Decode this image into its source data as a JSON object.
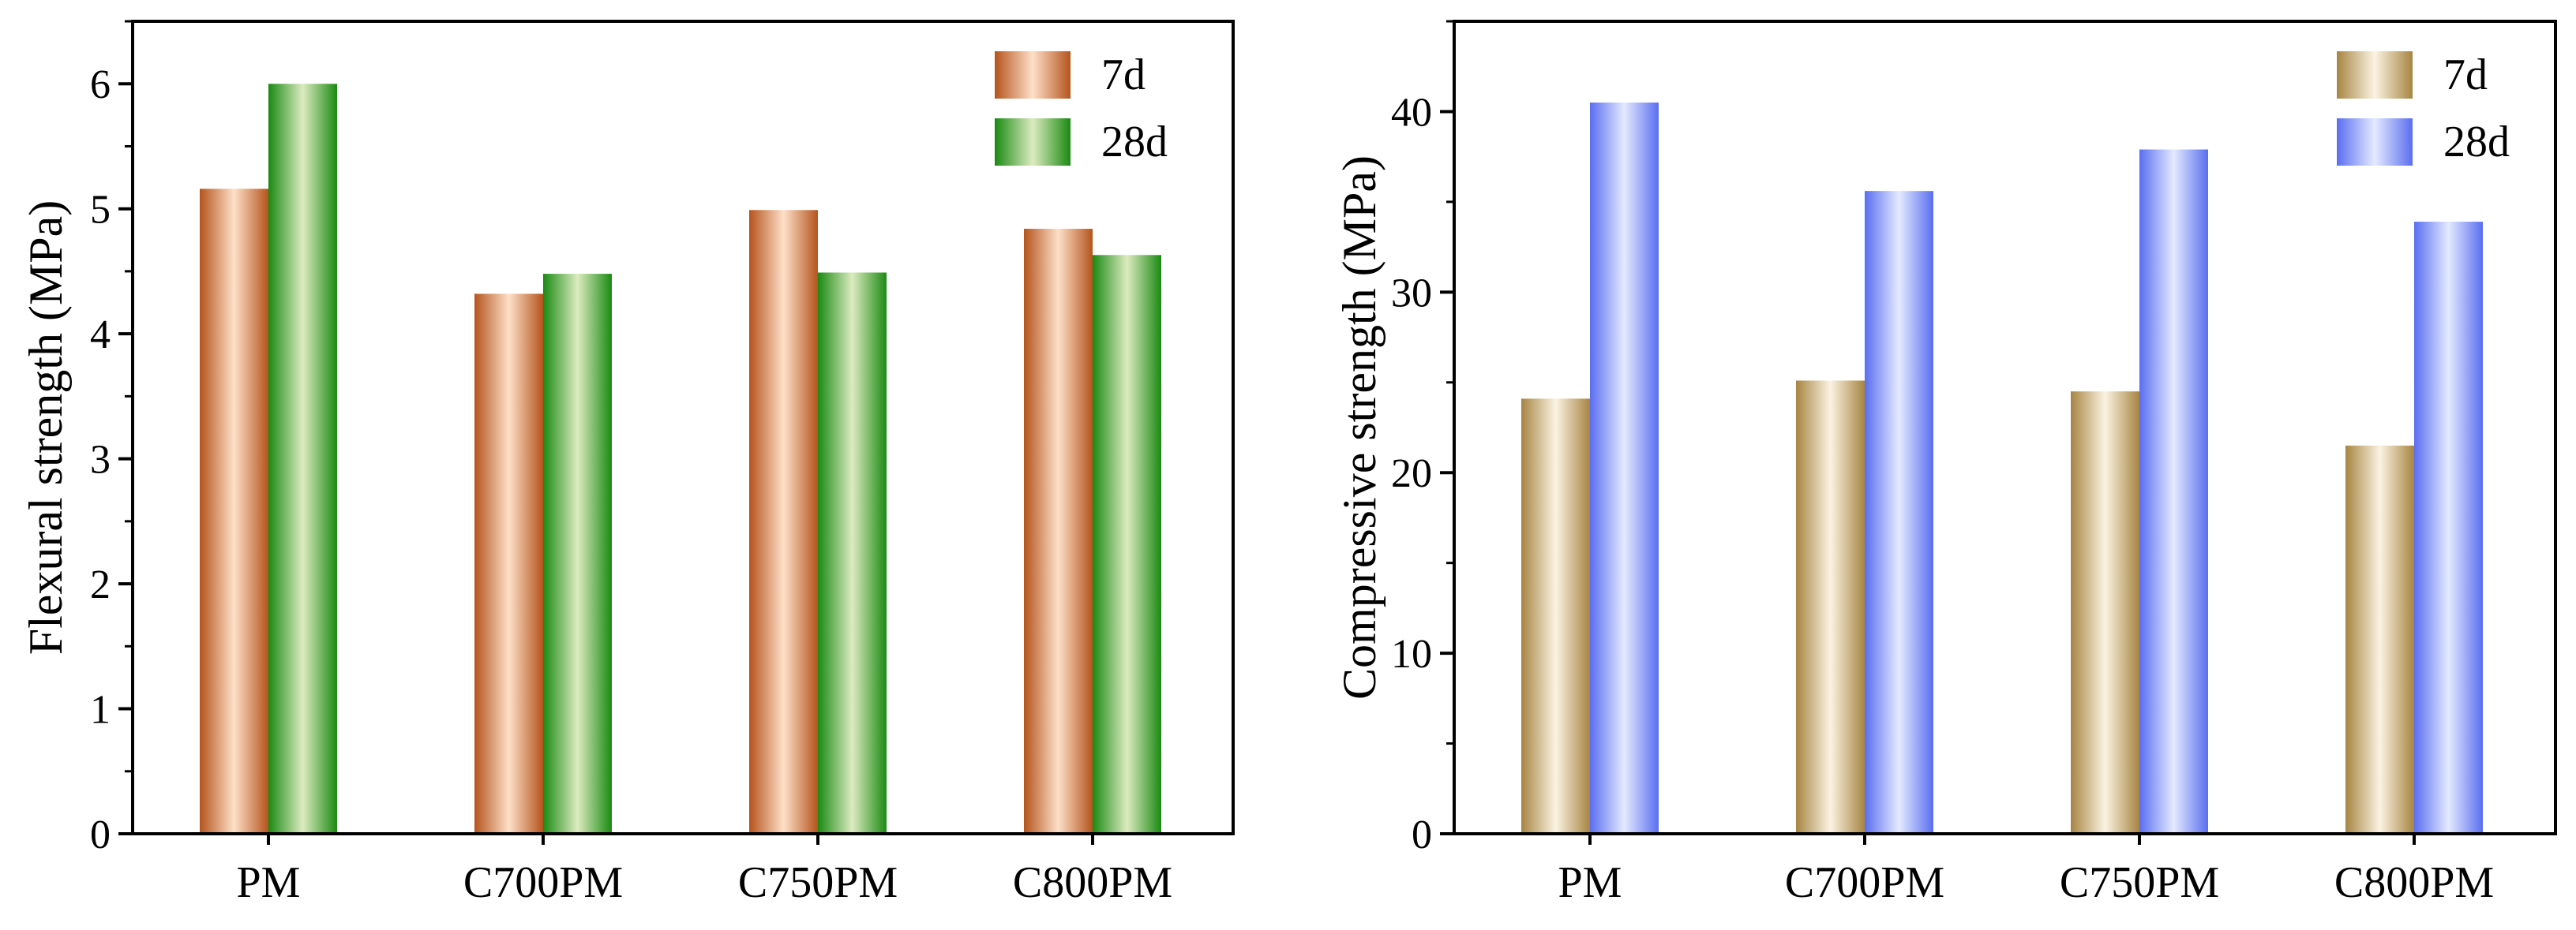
{
  "chart_data": [
    {
      "type": "bar",
      "title": "",
      "xlabel": "",
      "ylabel": "Flexural strength (MPa)",
      "ylim": [
        0,
        6.5
      ],
      "yticks": [
        "0",
        "1",
        "2",
        "3",
        "4",
        "5",
        "6"
      ],
      "categories": [
        "PM",
        "C700PM",
        "C750PM",
        "C800PM"
      ],
      "legend_position": "top-right",
      "series": [
        {
          "name": "7d",
          "values": [
            5.16,
            4.32,
            4.99,
            4.84
          ],
          "color_dark": "#b5541c",
          "color_light": "#fde0c8"
        },
        {
          "name": "28d",
          "values": [
            6.0,
            4.48,
            4.49,
            4.63
          ],
          "color_dark": "#1a8a12",
          "color_light": "#dcebc0"
        }
      ]
    },
    {
      "type": "bar",
      "title": "",
      "xlabel": "",
      "ylabel": "Compressive strength (MPa)",
      "ylim": [
        0,
        45
      ],
      "yticks": [
        "0",
        "10",
        "20",
        "30",
        "40"
      ],
      "categories": [
        "PM",
        "C700PM",
        "C750PM",
        "C800PM"
      ],
      "legend_position": "top-right",
      "series": [
        {
          "name": "7d",
          "values": [
            24.1,
            25.1,
            24.5,
            21.5
          ],
          "color_dark": "#a78542",
          "color_light": "#fbf3e2"
        },
        {
          "name": "28d",
          "values": [
            40.5,
            35.6,
            37.9,
            33.9
          ],
          "color_dark": "#5a6ef0",
          "color_light": "#e4eaff"
        }
      ]
    }
  ]
}
